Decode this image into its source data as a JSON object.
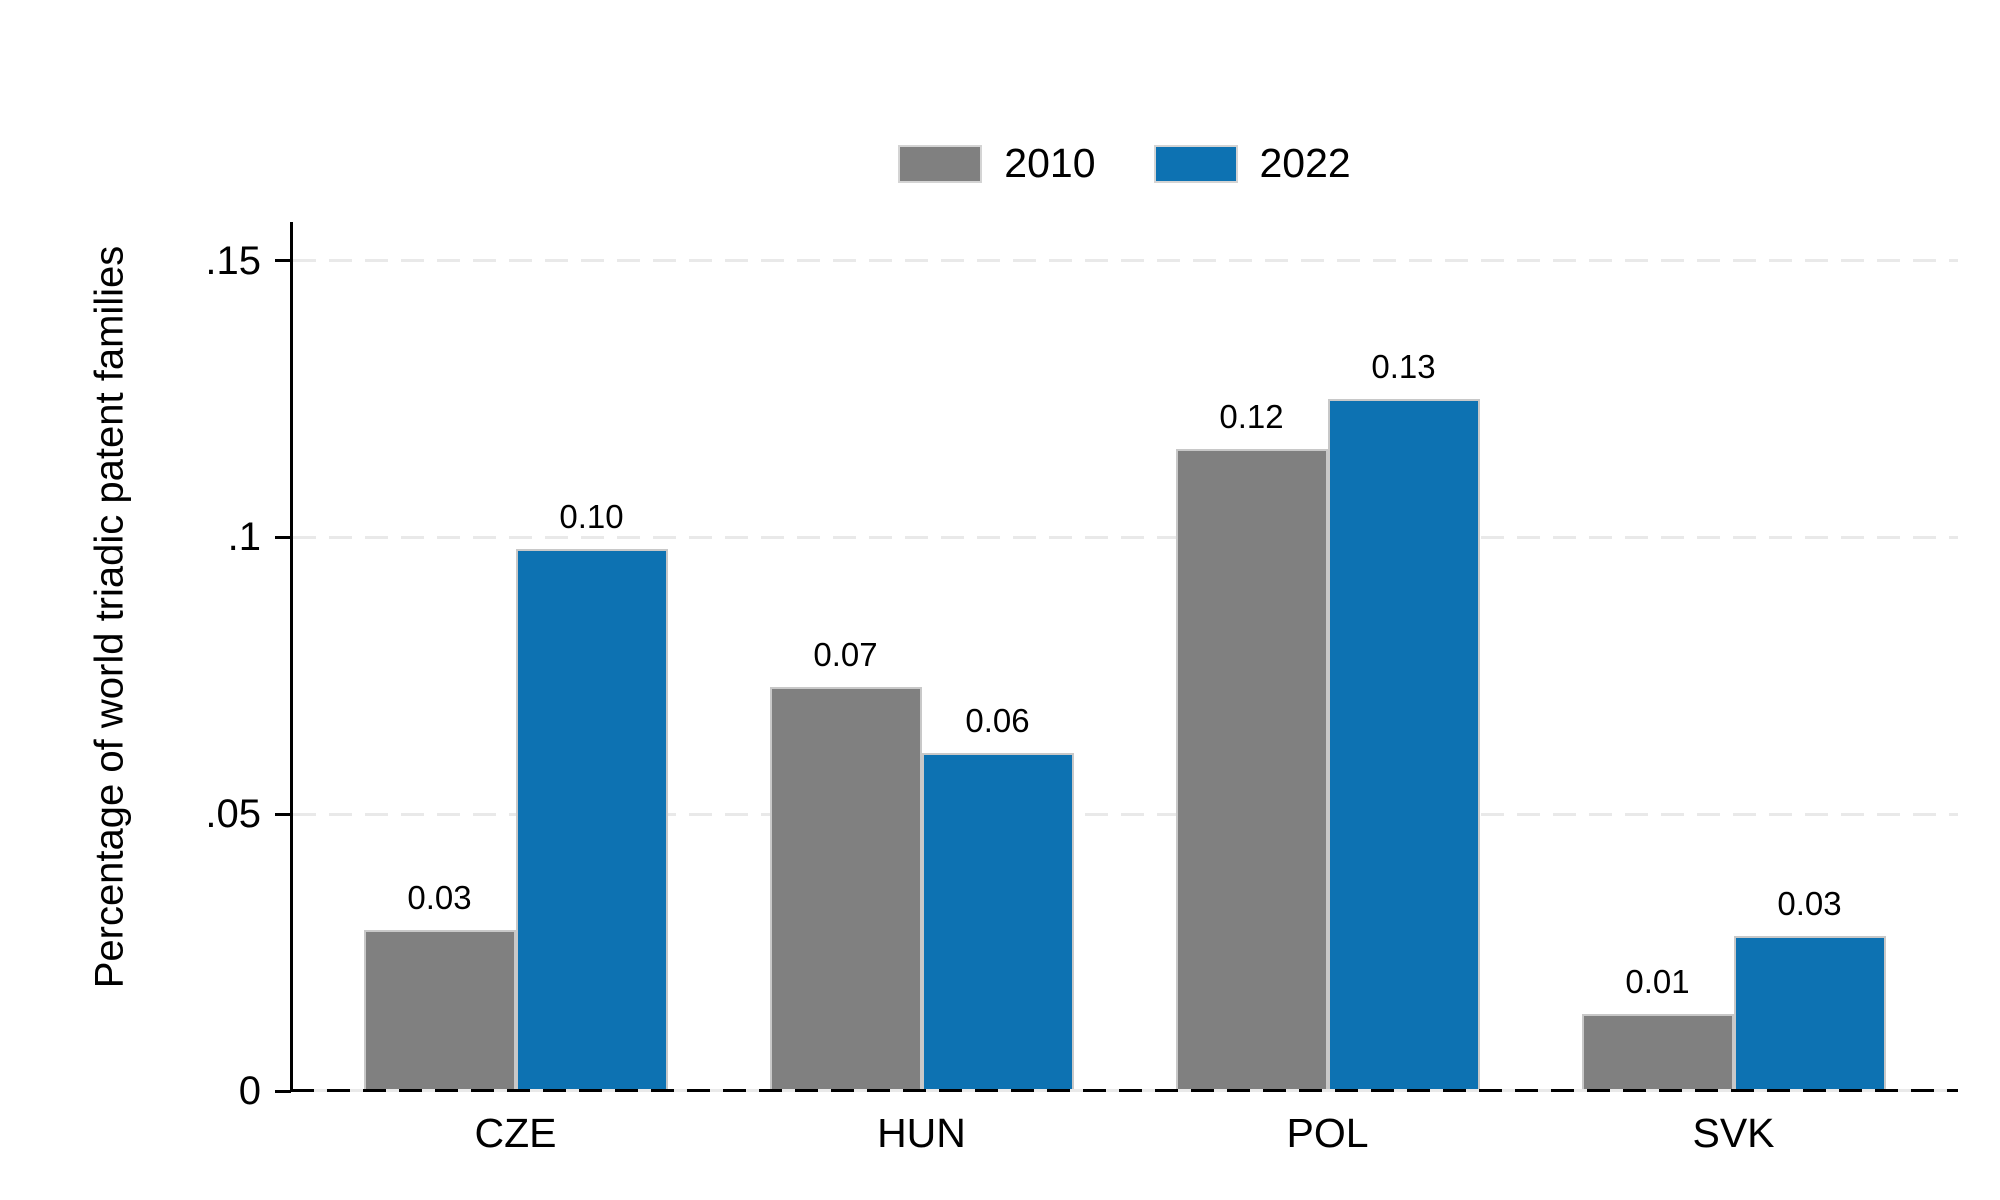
{
  "chart_data": {
    "type": "bar",
    "title": "",
    "xlabel": "",
    "ylabel": "Percentage of world triadic patent families",
    "categories": [
      "CZE",
      "HUN",
      "POL",
      "SVK"
    ],
    "series": [
      {
        "name": "2010",
        "color": "#808080",
        "values": [
          0.029,
          0.073,
          0.116,
          0.014
        ],
        "labels": [
          "0.03",
          "0.07",
          "0.12",
          "0.01"
        ]
      },
      {
        "name": "2022",
        "color": "#0d72b2",
        "values": [
          0.098,
          0.061,
          0.125,
          0.028
        ],
        "labels": [
          "0.10",
          "0.06",
          "0.13",
          "0.03"
        ]
      }
    ],
    "y_ticks": [
      {
        "value": 0,
        "label": "0"
      },
      {
        "value": 0.05,
        "label": ".05"
      },
      {
        "value": 0.1,
        "label": ".1"
      },
      {
        "value": 0.15,
        "label": ".15"
      }
    ],
    "ylim": [
      0,
      0.157
    ],
    "grid": "horizontal-dashed",
    "legend_position": "top-center",
    "colors": {
      "axis": "#000000",
      "gridline": "#e9e9e9",
      "bar_border": "#c8c8c8",
      "background": "#ffffff",
      "text": "#000000"
    }
  }
}
